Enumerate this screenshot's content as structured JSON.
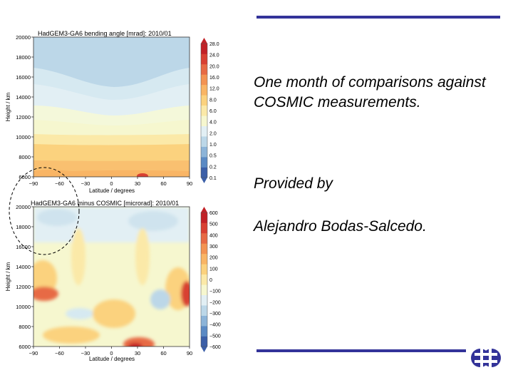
{
  "slide": {
    "caption_lines": [
      "One month of comparisons against COSMIC measurements."
    ],
    "provided_by": "Provided by",
    "author": "Alejandro Bodas-Salcedo.",
    "rule_color": "#333399",
    "logo_icon": "ecmwf-logo-icon"
  },
  "chart_data": [
    {
      "type": "heatmap",
      "title": "HadGEM3-GA6 bending angle [mrad]: 2010/01",
      "xlabel": "Latitude / degrees",
      "ylabel": "Height / km",
      "xlim": [
        -90,
        90
      ],
      "ylim": [
        6000,
        20000
      ],
      "x_ticks": [
        "−90",
        "−60",
        "−30",
        "0",
        "30",
        "60",
        "90"
      ],
      "y_ticks": [
        "6000",
        "8000",
        "10000",
        "12000",
        "14000",
        "16000",
        "18000",
        "20000"
      ],
      "colorbar_ticks": [
        "0.1",
        "0.2",
        "0.5",
        "1.0",
        "2.0",
        "4.0",
        "6.0",
        "8.0",
        "12.0",
        "16.0",
        "20.0",
        "24.0",
        "28.0"
      ],
      "colormap": [
        "#3b5fa8",
        "#5b8ac4",
        "#8cb4d8",
        "#bcd7e8",
        "#e2eff4",
        "#f6f7cf",
        "#fbe9a8",
        "#fbd27e",
        "#f9b565",
        "#f39352",
        "#e76a44",
        "#d84032",
        "#c22126"
      ],
      "note": "bending angle decreases with height"
    },
    {
      "type": "heatmap",
      "title": "HadGEM3-GA6 minus COSMIC [microrad]: 2010/01",
      "xlabel": "Latitude / degrees",
      "ylabel": "Height / km",
      "xlim": [
        -90,
        90
      ],
      "ylim": [
        6000,
        20000
      ],
      "x_ticks": [
        "−90",
        "−60",
        "−30",
        "0",
        "30",
        "60",
        "90"
      ],
      "y_ticks": [
        "6000",
        "8000",
        "10000",
        "12000",
        "14000",
        "16000",
        "18000",
        "20000"
      ],
      "colorbar_ticks": [
        "−600",
        "−500",
        "−400",
        "−300",
        "−200",
        "−100",
        "0",
        "100",
        "200",
        "300",
        "400",
        "500",
        "600"
      ],
      "colormap": [
        "#3b5fa8",
        "#5b8ac4",
        "#8cb4d8",
        "#bcd7e8",
        "#e2eff4",
        "#f6f7cf",
        "#fbe9a8",
        "#fbd27e",
        "#f9b565",
        "#f39352",
        "#e76a44",
        "#d84032",
        "#c22126"
      ]
    }
  ]
}
